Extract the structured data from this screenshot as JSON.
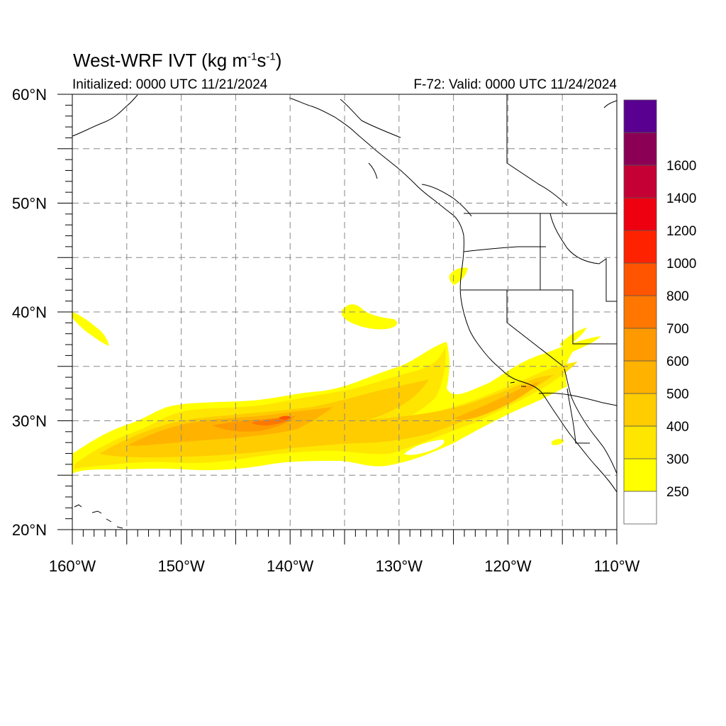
{
  "title": {
    "main": "West-WRF IVT (kg m",
    "sup1": "-1",
    "mid": "s",
    "sup2": "-1",
    "end": ")"
  },
  "initialized": "Initialized: 0000 UTC 11/21/2024",
  "valid": "F-72: Valid: 0000 UTC 11/24/2024",
  "map_data": {
    "type": "filled-contour-map",
    "lon_range": [
      -160,
      -110
    ],
    "lat_range": [
      20,
      60
    ],
    "lat_ticks": [
      {
        "lat": 60,
        "label": "60°N"
      },
      {
        "lat": 50,
        "label": "50°N"
      },
      {
        "lat": 40,
        "label": "40°N"
      },
      {
        "lat": 30,
        "label": "30°N"
      },
      {
        "lat": 20,
        "label": "20°N"
      }
    ],
    "lon_ticks": [
      {
        "lon": -160,
        "label": "160°W"
      },
      {
        "lon": -150,
        "label": "150°W"
      },
      {
        "lon": -140,
        "label": "140°W"
      },
      {
        "lon": -130,
        "label": "130°W"
      },
      {
        "lon": -120,
        "label": "120°W"
      },
      {
        "lon": -110,
        "label": "110°W"
      }
    ],
    "grid": "dashed every 5 degrees",
    "colorbar": {
      "labels": [
        "250",
        "300",
        "400",
        "500",
        "600",
        "700",
        "800",
        "1000",
        "1200",
        "1400",
        "1600"
      ],
      "colors": [
        "#ffffff",
        "#ffff00",
        "#ffe600",
        "#ffcc00",
        "#ffb300",
        "#ff9900",
        "#ff7700",
        "#ff5500",
        "#ff2200",
        "#ee0011",
        "#c40035",
        "#8b0055",
        "#5a0090"
      ]
    }
  }
}
